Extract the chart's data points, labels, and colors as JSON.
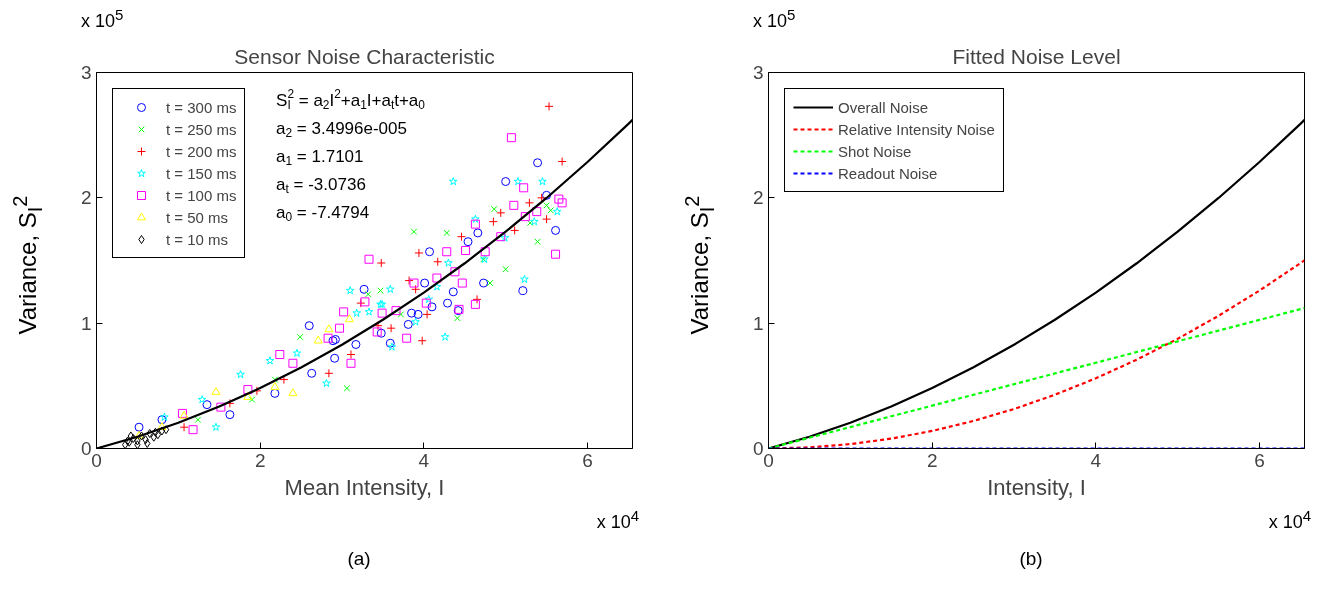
{
  "chart_data": [
    {
      "type": "scatter",
      "title": "Sensor Noise Characteristic",
      "xlabel": "Mean Intensity, I",
      "ylabel": "Variance, S$_{I}$$^{2}$",
      "xlim": [
        0,
        6.55
      ],
      "ylim": [
        0,
        3
      ],
      "xticks": [
        0,
        2,
        4,
        6
      ],
      "yticks": [
        0,
        1,
        2,
        3
      ],
      "legend": "top left",
      "annotations": [
        "x 10$^{5}$",
        "x 10$^{4}$",
        "S$_{I}$$^{2}$ = a$_{2}$I$^{2}$+a$_{1}$I+a$_{t}$t+a$_{0}$",
        "a$_{2}$ = 3.4996e-005",
        "a$_{1}$ = 1.7101",
        "a$_{t}$ = -3.0736",
        "a$_{0}$ = -7.4794",
        "(a)"
      ],
      "series": [
        {
          "name": "t = 300 ms",
          "color": "#0000ff",
          "marker": "circle",
          "x": [
            5.39,
            5.0,
            5.5,
            5.61,
            4.66,
            4.54,
            4.07,
            4.73,
            4.01,
            5.21,
            4.36,
            4.29,
            4.1,
            4.42,
            3.27,
            3.85,
            3.93,
            3.81,
            3.48,
            2.6,
            3.59,
            2.89,
            3.17,
            2.92,
            2.91,
            2.63,
            1.63,
            1.35,
            2.18,
            0.52,
            0.8
          ],
          "values": [
            2.28,
            2.13,
            2.02,
            1.74,
            1.72,
            1.65,
            1.57,
            1.32,
            1.32,
            1.26,
            1.25,
            1.16,
            1.13,
            1.1,
            1.27,
            1.08,
            1.07,
            0.99,
            0.92,
            0.98,
            0.84,
            0.86,
            0.83,
            0.87,
            0.72,
            0.6,
            0.27,
            0.35,
            0.44,
            0.17,
            0.23
          ]
        },
        {
          "name": "t = 250 ms",
          "color": "#00ff00",
          "marker": "x",
          "x": [
            3.88,
            4.28,
            4.86,
            5.39,
            5.5,
            5.0,
            4.81,
            4.73,
            4.41,
            3.47,
            2.49,
            3.32,
            3.06,
            3.72,
            1.24,
            1.9,
            2.18,
            5.3,
            5.55
          ],
          "values": [
            1.73,
            1.72,
            1.91,
            1.65,
            1.94,
            1.43,
            1.32,
            1.51,
            1.04,
            1.26,
            0.89,
            1.23,
            0.48,
            1.07,
            0.23,
            0.39,
            0.55,
            1.8,
            1.9
          ]
        },
        {
          "name": "t = 200 ms",
          "color": "#ff0000",
          "marker": "cross",
          "x": [
            5.53,
            5.69,
            5.44,
            5.29,
            4.94,
            4.85,
            5.5,
            5.11,
            4.46,
            3.94,
            4.17,
            3.48,
            3.82,
            3.9,
            4.65,
            3.23,
            4.04,
            3.98,
            3.6,
            3.44,
            2.84,
            3.11,
            1.63,
            1.07,
            1.96,
            2.29
          ],
          "values": [
            2.73,
            2.29,
            2.0,
            1.96,
            1.88,
            1.81,
            1.83,
            1.74,
            1.69,
            1.56,
            1.49,
            1.48,
            1.34,
            1.27,
            1.19,
            1.16,
            1.07,
            0.86,
            0.96,
            0.98,
            0.6,
            0.75,
            0.36,
            0.17,
            0.46,
            0.55
          ]
        },
        {
          "name": "t = 150 ms",
          "color": "#00ffff",
          "marker": "star",
          "x": [
            4.36,
            5.15,
            5.45,
            5.63,
            5.35,
            4.99,
            4.63,
            4.74,
            4.3,
            5.23,
            4.16,
            3.59,
            3.1,
            3.47,
            3.33,
            3.18,
            4.06,
            3.9,
            4.26,
            3.61,
            3.49,
            2.81,
            2.12,
            1.76,
            1.46,
            0.83,
            2.45,
            1.29
          ],
          "values": [
            2.13,
            2.13,
            2.13,
            1.89,
            1.81,
            1.68,
            1.83,
            1.51,
            1.48,
            1.35,
            1.29,
            1.27,
            1.26,
            1.15,
            1.09,
            1.08,
            1.19,
            1.01,
            0.89,
            0.81,
            1.15,
            0.52,
            0.7,
            0.59,
            0.17,
            0.25,
            0.76,
            0.39
          ]
        },
        {
          "name": "t = 100 ms",
          "color": "#ff00ff",
          "marker": "square",
          "x": [
            5.07,
            5.22,
            5.1,
            5.24,
            5.38,
            5.65,
            5.69,
            5.61,
            4.63,
            4.94,
            4.51,
            4.75,
            4.28,
            3.33,
            4.38,
            4.16,
            4.47,
            3.88,
            3.28,
            4.03,
            4.43,
            4.63,
            3.02,
            3.49,
            3.66,
            2.97,
            3.43,
            3.79,
            2.24,
            2.83,
            3.11,
            2.4,
            1.05,
            1.18,
            1.85,
            1.52
          ],
          "values": [
            2.48,
            2.08,
            1.94,
            1.85,
            1.89,
            1.99,
            1.96,
            1.55,
            1.79,
            1.69,
            1.58,
            1.57,
            1.57,
            1.51,
            1.41,
            1.36,
            1.32,
            1.32,
            1.17,
            1.16,
            1.11,
            1.15,
            1.09,
            1.08,
            1.1,
            0.96,
            0.93,
            0.88,
            0.75,
            0.88,
            0.68,
            0.68,
            0.28,
            0.15,
            0.47,
            0.33
          ]
        },
        {
          "name": "t = 50 ms",
          "color": "#ffff00",
          "marker": "triangle",
          "x": [
            2.84,
            3.09,
            1.46,
            2.4,
            1.85,
            1.07,
            0.8,
            2.18,
            0.52,
            2.71
          ],
          "values": [
            0.95,
            1.03,
            0.45,
            0.44,
            0.41,
            0.26,
            0.17,
            0.49,
            0.1,
            0.86
          ]
        },
        {
          "name": "t = 10 ms",
          "color": "#000000",
          "marker": "diamond",
          "x": [
            0.35,
            0.4,
            0.45,
            0.5,
            0.55,
            0.6,
            0.65,
            0.7,
            0.75,
            0.8,
            0.5,
            0.42,
            0.62,
            0.72,
            0.85,
            0.38
          ],
          "values": [
            0.03,
            0.05,
            0.08,
            0.06,
            0.1,
            0.07,
            0.12,
            0.09,
            0.11,
            0.14,
            0.03,
            0.1,
            0.04,
            0.13,
            0.15,
            0.06
          ]
        },
        {
          "type": "line",
          "color": "#000000",
          "line_style": "solid",
          "x": [
            0,
            0.5,
            1,
            1.5,
            2,
            2.5,
            3,
            3.5,
            4,
            4.5,
            5,
            5.5,
            6,
            6.5,
            6.55
          ],
          "values": [
            0,
            0.094,
            0.206,
            0.335,
            0.482,
            0.646,
            0.828,
            1.027,
            1.244,
            1.478,
            1.73,
            1.999,
            2.286,
            2.59,
            2.622
          ]
        }
      ]
    },
    {
      "type": "line",
      "title": "Fitted Noise Level",
      "xlabel": "Intensity, I",
      "ylabel": "Variance, S$_{I}$$^{2}$",
      "xlim": [
        0,
        6.55
      ],
      "ylim": [
        0,
        3
      ],
      "xticks": [
        0,
        2,
        4,
        6
      ],
      "yticks": [
        0,
        1,
        2,
        3
      ],
      "legend": "top left",
      "annotations": [
        "x 10$^{5}$",
        "x 10$^{4}$",
        "(b)"
      ],
      "x": [
        0,
        0.5,
        1,
        1.5,
        2,
        2.5,
        3,
        3.5,
        4,
        4.5,
        5,
        5.5,
        6,
        6.5,
        6.55
      ],
      "series": [
        {
          "name": "Overall Noise",
          "color": "#000000",
          "line_style": "solid",
          "values": [
            0,
            0.094,
            0.206,
            0.335,
            0.482,
            0.646,
            0.828,
            1.027,
            1.244,
            1.478,
            1.73,
            1.999,
            2.286,
            2.59,
            2.622
          ]
        },
        {
          "name": "Relative Intensity Noise",
          "color": "#ff0000",
          "line_style": "dashed",
          "values": [
            0,
            0.009,
            0.035,
            0.079,
            0.14,
            0.219,
            0.315,
            0.429,
            0.56,
            0.709,
            0.875,
            1.059,
            1.26,
            1.479,
            1.501
          ]
        },
        {
          "name": "Shot Noise",
          "color": "#00ff00",
          "line_style": "dashed",
          "values": [
            0,
            0.086,
            0.171,
            0.257,
            0.342,
            0.428,
            0.513,
            0.599,
            0.684,
            0.77,
            0.855,
            0.941,
            1.026,
            1.112,
            1.12
          ]
        },
        {
          "name": "Readout Noise",
          "color": "#0000ff",
          "line_style": "dashed",
          "values": [
            0,
            0,
            0,
            0,
            0,
            0,
            0,
            0,
            0,
            0,
            0,
            0,
            0,
            0,
            0
          ]
        }
      ]
    }
  ]
}
